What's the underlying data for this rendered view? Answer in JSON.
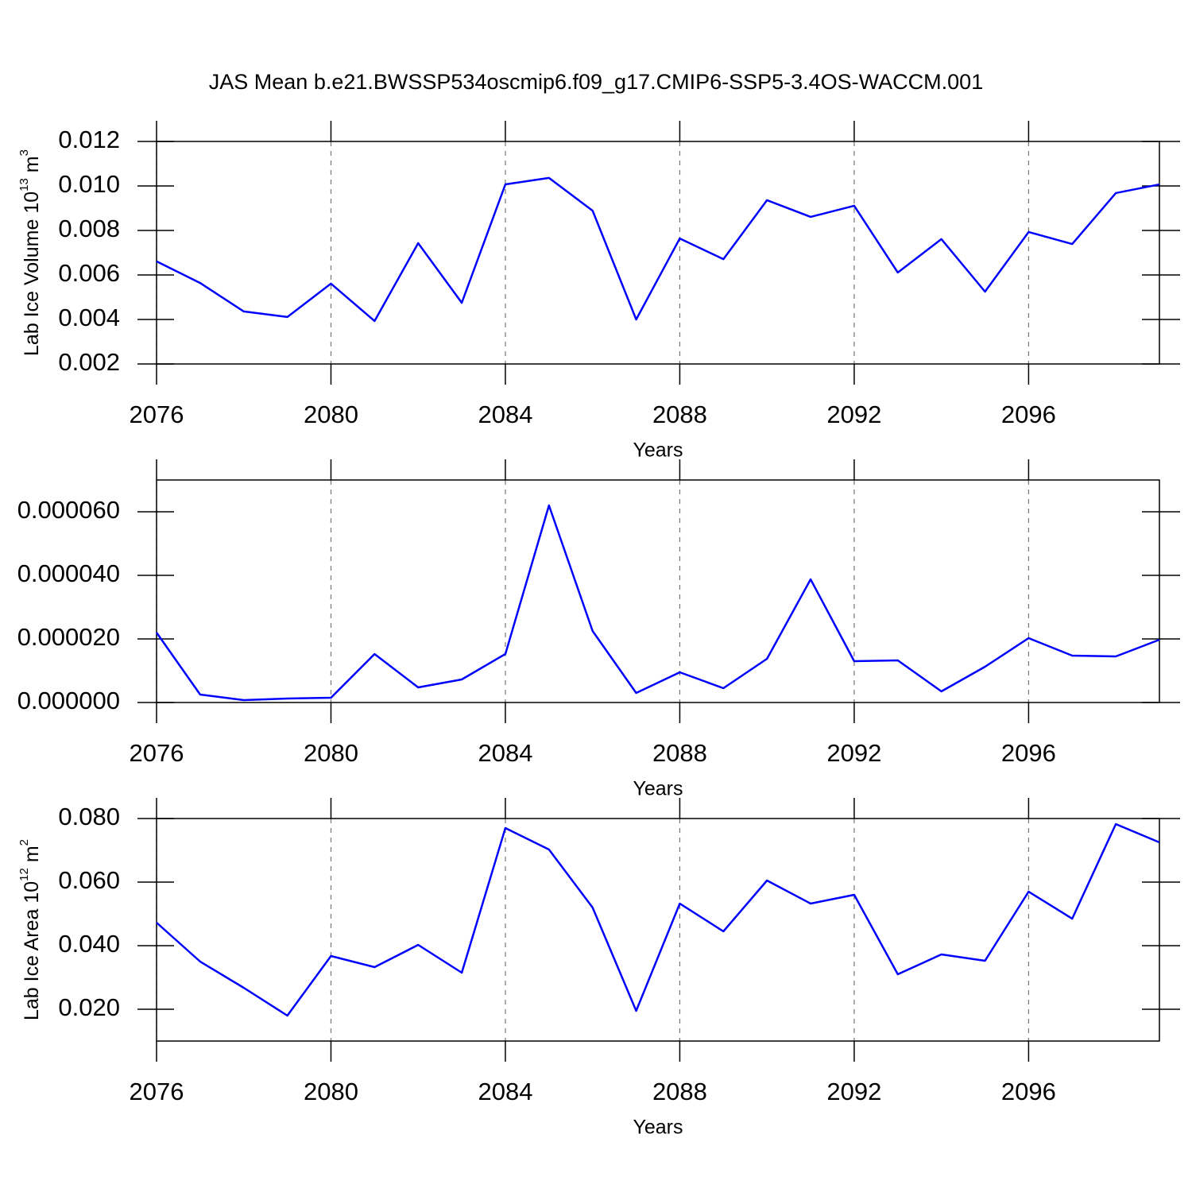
{
  "title": "JAS Mean b.e21.BWSSP534oscmip6.f09_g17.CMIP6-SSP5-3.4OS-WACCM.001",
  "chart_data": [
    {
      "type": "line",
      "xlabel": "Years",
      "ylabel": {
        "text": "Lab Ice Volume 10",
        "exp": "13",
        "unit": "m",
        "unit_exp": "3"
      },
      "x": [
        2076,
        2077,
        2078,
        2079,
        2080,
        2081,
        2082,
        2083,
        2084,
        2085,
        2086,
        2087,
        2088,
        2089,
        2090,
        2091,
        2092,
        2093,
        2094,
        2095,
        2096,
        2097,
        2098,
        2099
      ],
      "values": [
        0.00661,
        0.00564,
        0.00436,
        0.00411,
        0.00561,
        0.00393,
        0.00743,
        0.00475,
        0.01007,
        0.01036,
        0.00889,
        0.004,
        0.00764,
        0.00671,
        0.00936,
        0.00861,
        0.00911,
        0.00611,
        0.00761,
        0.00525,
        0.00793,
        0.00739,
        0.00968,
        0.01007
      ],
      "color": "#0000ff",
      "xlim": [
        2076,
        2099
      ],
      "xticks": [
        2076,
        2080,
        2084,
        2088,
        2092,
        2096
      ],
      "ylim": [
        0.002,
        0.012
      ],
      "yticks": [
        0.002,
        0.004,
        0.006,
        0.008,
        {
          "value": 0.01,
          "label": "0.010"
        },
        0.012
      ],
      "grid": true
    },
    {
      "type": "line",
      "xlabel": "Years",
      "x": [
        2076,
        2077,
        2078,
        2079,
        2080,
        2081,
        2082,
        2083,
        2084,
        2085,
        2086,
        2087,
        2088,
        2089,
        2090,
        2091,
        2092,
        2093,
        2094,
        2095,
        2096,
        2097,
        2098,
        2099
      ],
      "values": [
        2.2e-05,
        2.5e-06,
        7.5e-07,
        1.25e-06,
        1.5e-06,
        1.525e-05,
        4.75e-06,
        7.25e-06,
        1.525e-05,
        6.2e-05,
        2.25e-05,
        3e-06,
        9.5e-06,
        4.5e-06,
        1.375e-05,
        3.875e-05,
        1.3e-05,
        1.325e-05,
        3.5e-06,
        1.125e-05,
        2.025e-05,
        1.475e-05,
        1.45e-05,
        1.975e-05
      ],
      "color": "#0000ff",
      "xlim": [
        2076,
        2099
      ],
      "xticks": [
        2076,
        2080,
        2084,
        2088,
        2092,
        2096
      ],
      "ylim": [
        0,
        7e-05
      ],
      "yticks": [
        {
          "value": 0,
          "label": "0.000000"
        },
        {
          "value": 2e-05,
          "label": "0.000020"
        },
        {
          "value": 4e-05,
          "label": "0.000040"
        },
        {
          "value": 6e-05,
          "label": "0.000060"
        }
      ],
      "grid": true
    },
    {
      "type": "line",
      "xlabel": "Years",
      "ylabel": {
        "text": "Lab Ice Area 10",
        "exp": "12",
        "unit": "m",
        "unit_exp": "2"
      },
      "x": [
        2076,
        2077,
        2078,
        2079,
        2080,
        2081,
        2082,
        2083,
        2084,
        2085,
        2086,
        2087,
        2088,
        2089,
        2090,
        2091,
        2092,
        2093,
        2094,
        2095,
        2096,
        2097,
        2098,
        2099
      ],
      "values": [
        0.04725,
        0.035,
        0.02675,
        0.018,
        0.03675,
        0.03325,
        0.04025,
        0.0315,
        0.077,
        0.07025,
        0.052,
        0.0195,
        0.05325,
        0.0445,
        0.0605,
        0.05325,
        0.056,
        0.031,
        0.03725,
        0.03525,
        0.057,
        0.0485,
        0.07825,
        0.0725
      ],
      "color": "#0000ff",
      "xlim": [
        2076,
        2099
      ],
      "xticks": [
        2076,
        2080,
        2084,
        2088,
        2092,
        2096
      ],
      "ylim": [
        0.01,
        0.08
      ],
      "yticks": [
        {
          "value": 0.02,
          "label": "0.020"
        },
        {
          "value": 0.04,
          "label": "0.040"
        },
        {
          "value": 0.06,
          "label": "0.060"
        },
        {
          "value": 0.08,
          "label": "0.080"
        }
      ],
      "grid": true
    }
  ]
}
